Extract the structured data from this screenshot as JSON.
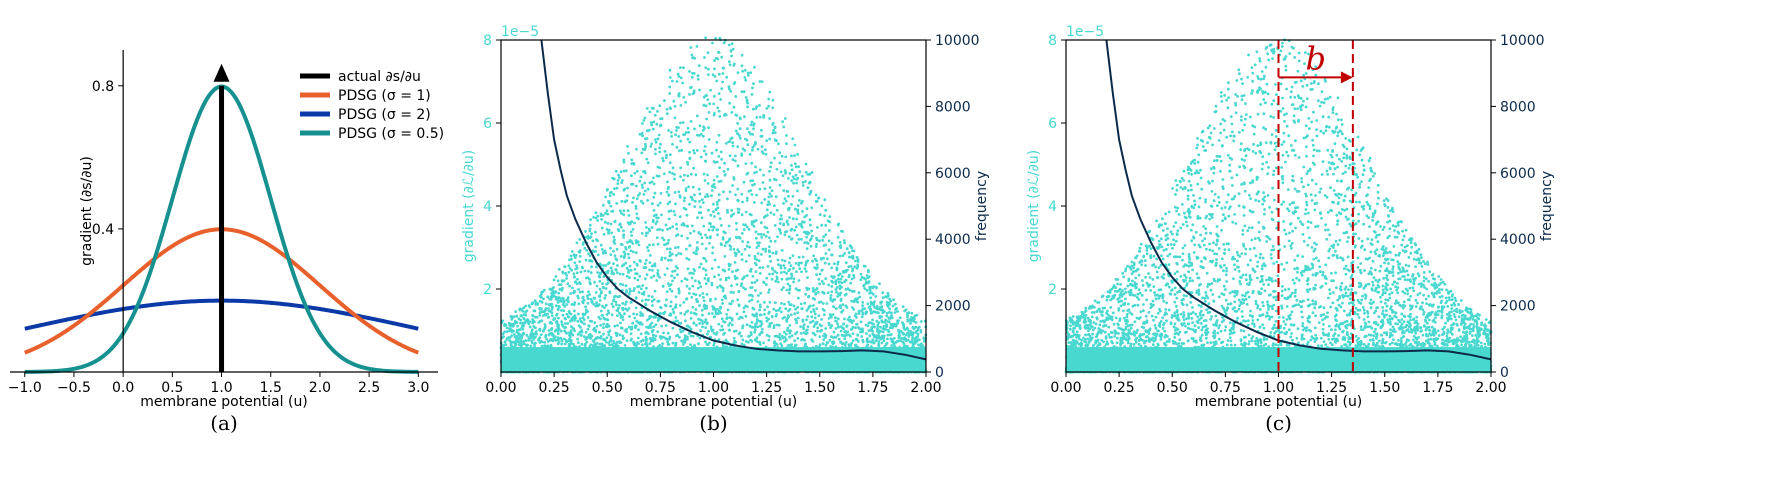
{
  "chart_data": [
    {
      "id": "a",
      "type": "line",
      "caption": "(a)",
      "xlabel": "membrane potential (u)",
      "ylabel": "gradient (∂s/∂u)",
      "xlim": [
        -1.15,
        3.2
      ],
      "ylim": [
        0,
        0.9
      ],
      "xticks": [
        -1.0,
        -0.5,
        0.0,
        0.5,
        1.0,
        1.5,
        2.0,
        2.5,
        3.0
      ],
      "xtick_labels": [
        "−1.0",
        "−0.5",
        "0.0",
        "0.5",
        "1.0",
        "1.5",
        "2.0",
        "2.5",
        "3.0"
      ],
      "yticks": [
        0.4,
        0.8
      ],
      "ytick_labels": [
        "0.4",
        "0.8"
      ],
      "x_domain": [
        -1.0,
        3.0
      ],
      "center": 1.0,
      "series": [
        {
          "name": "actual ∂s/∂u",
          "kind": "impulse",
          "x": 1.0,
          "y_top": 0.8,
          "color": "#000000"
        },
        {
          "name": "PDSG (σ = 1)",
          "kind": "gaussian",
          "sigma": 1,
          "color": "#e8602c"
        },
        {
          "name": "PDSG (σ = 2)",
          "kind": "gaussian",
          "sigma": 2,
          "color": "#0b3aa8"
        },
        {
          "name": "PDSG (σ = 0.5)",
          "kind": "gaussian",
          "sigma": 0.5,
          "color": "#17918f"
        }
      ],
      "legend_position": "top-right"
    },
    {
      "id": "b",
      "type": "scatter",
      "caption": "(b)",
      "xlabel": "membrane potential (u)",
      "ylabel_left": "gradient (∂ℒ/∂u)",
      "ylabel_right": "frequency",
      "offset_text": "1e−5",
      "xlim": [
        0,
        2.0
      ],
      "ylim_left": [
        0,
        8
      ],
      "ylim_right": [
        0,
        10000
      ],
      "xticks": [
        0.0,
        0.25,
        0.5,
        0.75,
        1.0,
        1.25,
        1.5,
        1.75,
        2.0
      ],
      "xtick_labels": [
        "0.00",
        "0.25",
        "0.50",
        "0.75",
        "1.00",
        "1.25",
        "1.50",
        "1.75",
        "2.00"
      ],
      "yticks_left": [
        2,
        4,
        6,
        8
      ],
      "ytick_labels_left": [
        "2",
        "4",
        "6",
        "8"
      ],
      "yticks_right": [
        0,
        2000,
        4000,
        6000,
        8000,
        10000
      ],
      "ytick_labels_right": [
        "0",
        "2000",
        "4000",
        "6000",
        "8000",
        "10000"
      ],
      "scatter_color": "#48d8d0",
      "line_color": "#0b2a4a",
      "frequency_curve": {
        "x": [
          0.19,
          0.22,
          0.25,
          0.28,
          0.31,
          0.35,
          0.4,
          0.45,
          0.5,
          0.55,
          0.6,
          0.7,
          0.8,
          0.9,
          1.0,
          1.1,
          1.2,
          1.3,
          1.4,
          1.5,
          1.6,
          1.7,
          1.8,
          1.9,
          2.0
        ],
        "y": [
          10000,
          8400,
          7000,
          6100,
          5300,
          4600,
          3900,
          3300,
          2850,
          2500,
          2250,
          1850,
          1500,
          1200,
          950,
          800,
          700,
          650,
          620,
          620,
          630,
          650,
          620,
          520,
          380
        ]
      },
      "scatter_distribution": {
        "center_x": 1.0,
        "spread_x": 0.6,
        "max_y": 7.3
      }
    },
    {
      "id": "c",
      "type": "scatter",
      "caption": "(c)",
      "xlabel": "membrane potential (u)",
      "ylabel_left": "gradient (∂ℒ/∂u)",
      "ylabel_right": "frequency",
      "offset_text": "1e−5",
      "xlim": [
        0,
        2.0
      ],
      "ylim_left": [
        0,
        8
      ],
      "ylim_right": [
        0,
        10000
      ],
      "xticks": [
        0.0,
        0.25,
        0.5,
        0.75,
        1.0,
        1.25,
        1.5,
        1.75,
        2.0
      ],
      "xtick_labels": [
        "0.00",
        "0.25",
        "0.50",
        "0.75",
        "1.00",
        "1.25",
        "1.50",
        "1.75",
        "2.00"
      ],
      "yticks_left": [
        2,
        4,
        6,
        8
      ],
      "ytick_labels_left": [
        "2",
        "4",
        "6",
        "8"
      ],
      "yticks_right": [
        0,
        2000,
        4000,
        6000,
        8000,
        10000
      ],
      "ytick_labels_right": [
        "0",
        "2000",
        "4000",
        "6000",
        "8000",
        "10000"
      ],
      "scatter_color": "#48d8d0",
      "line_color": "#0b2a4a",
      "frequency_curve": {
        "x": [
          0.19,
          0.22,
          0.25,
          0.28,
          0.31,
          0.35,
          0.4,
          0.45,
          0.5,
          0.55,
          0.6,
          0.7,
          0.8,
          0.9,
          1.0,
          1.1,
          1.2,
          1.3,
          1.4,
          1.5,
          1.6,
          1.7,
          1.8,
          1.9,
          2.0
        ],
        "y": [
          10000,
          8400,
          7000,
          6100,
          5300,
          4600,
          3900,
          3300,
          2850,
          2500,
          2250,
          1850,
          1500,
          1200,
          950,
          800,
          700,
          650,
          620,
          620,
          630,
          650,
          620,
          520,
          380
        ]
      },
      "scatter_distribution": {
        "center_x": 1.0,
        "spread_x": 0.6,
        "max_y": 7.3
      },
      "dashed_lines_x": [
        1.0,
        1.35
      ],
      "annotation": {
        "text": "b",
        "x_from": 1.0,
        "x_to": 1.35,
        "y": 7.1,
        "color": "#c00000"
      }
    }
  ]
}
